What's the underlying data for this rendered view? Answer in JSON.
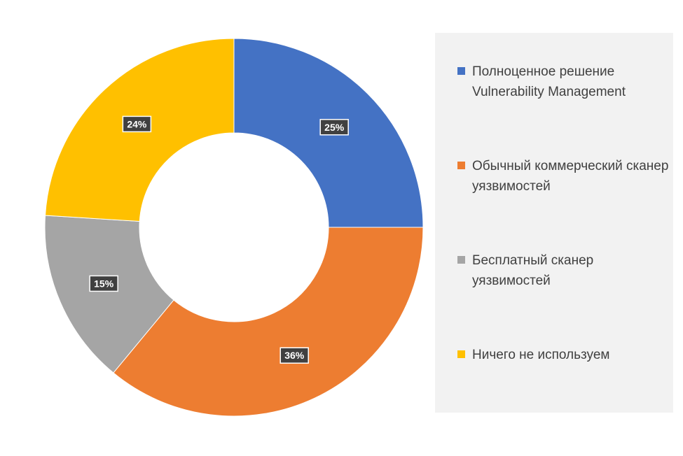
{
  "chart_data": {
    "type": "pie",
    "donut": true,
    "categories": [
      "Полноценное решение Vulnerability Management",
      "Обычный коммерческий сканер уязвимостей",
      "Бесплатный сканер уязвимостей",
      "Ничего не используем"
    ],
    "values": [
      25,
      36,
      15,
      24
    ],
    "data_labels": [
      "25%",
      "36%",
      "15%",
      "24%"
    ],
    "colors": [
      "#4472C4",
      "#ED7D31",
      "#A5A5A5",
      "#FFC000"
    ],
    "legend_position": "right",
    "title": ""
  },
  "legend": {
    "items": [
      {
        "label": "Полноценное решение Vulnerability Management",
        "color": "#4472C4"
      },
      {
        "label": "Обычный коммерческий сканер уязвимостей",
        "color": "#ED7D31"
      },
      {
        "label": "Бесплатный сканер уязвимостей",
        "color": "#A5A5A5"
      },
      {
        "label": "Ничего не используем",
        "color": "#FFC000"
      }
    ]
  }
}
